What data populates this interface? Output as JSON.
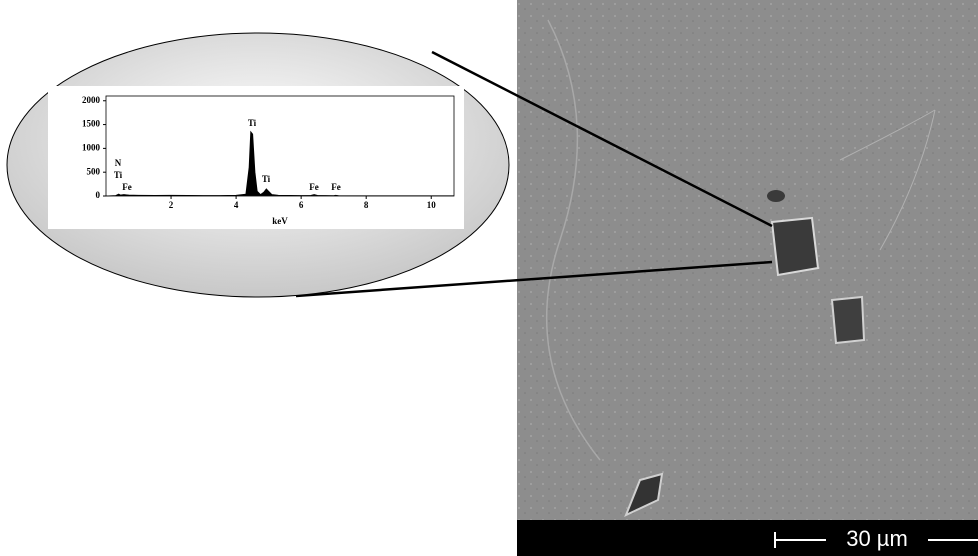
{
  "chart_data": {
    "type": "area",
    "color": "#000000",
    "x_label": "keV",
    "x": [
      0,
      0.3,
      0.39,
      0.45,
      0.55,
      0.7,
      1,
      1.5,
      2,
      2.5,
      3,
      3.5,
      4,
      4.3,
      4.4,
      4.45,
      4.51,
      4.58,
      4.65,
      4.75,
      4.85,
      4.93,
      5.0,
      5.1,
      5.3,
      6,
      6.3,
      6.4,
      6.5,
      7,
      7.06,
      7.15,
      8,
      9,
      10,
      10.7
    ],
    "values": [
      0,
      10,
      40,
      20,
      30,
      20,
      15,
      12,
      15,
      12,
      10,
      10,
      15,
      40,
      600,
      1350,
      1300,
      500,
      100,
      30,
      80,
      150,
      100,
      30,
      15,
      10,
      12,
      30,
      12,
      8,
      15,
      8,
      5,
      5,
      5,
      5
    ],
    "xlim": [
      0,
      10.7
    ],
    "xticks": [
      2,
      4,
      6,
      8,
      10
    ],
    "ylim": [
      0,
      2100
    ],
    "yticks": [
      0,
      500,
      1000,
      1500,
      2000
    ],
    "annotations": [
      "N",
      "Ti",
      "Fe",
      "Ti",
      "Ti",
      "Fe",
      "Fe"
    ]
  },
  "scale_bar": {
    "label": "30 µm"
  }
}
